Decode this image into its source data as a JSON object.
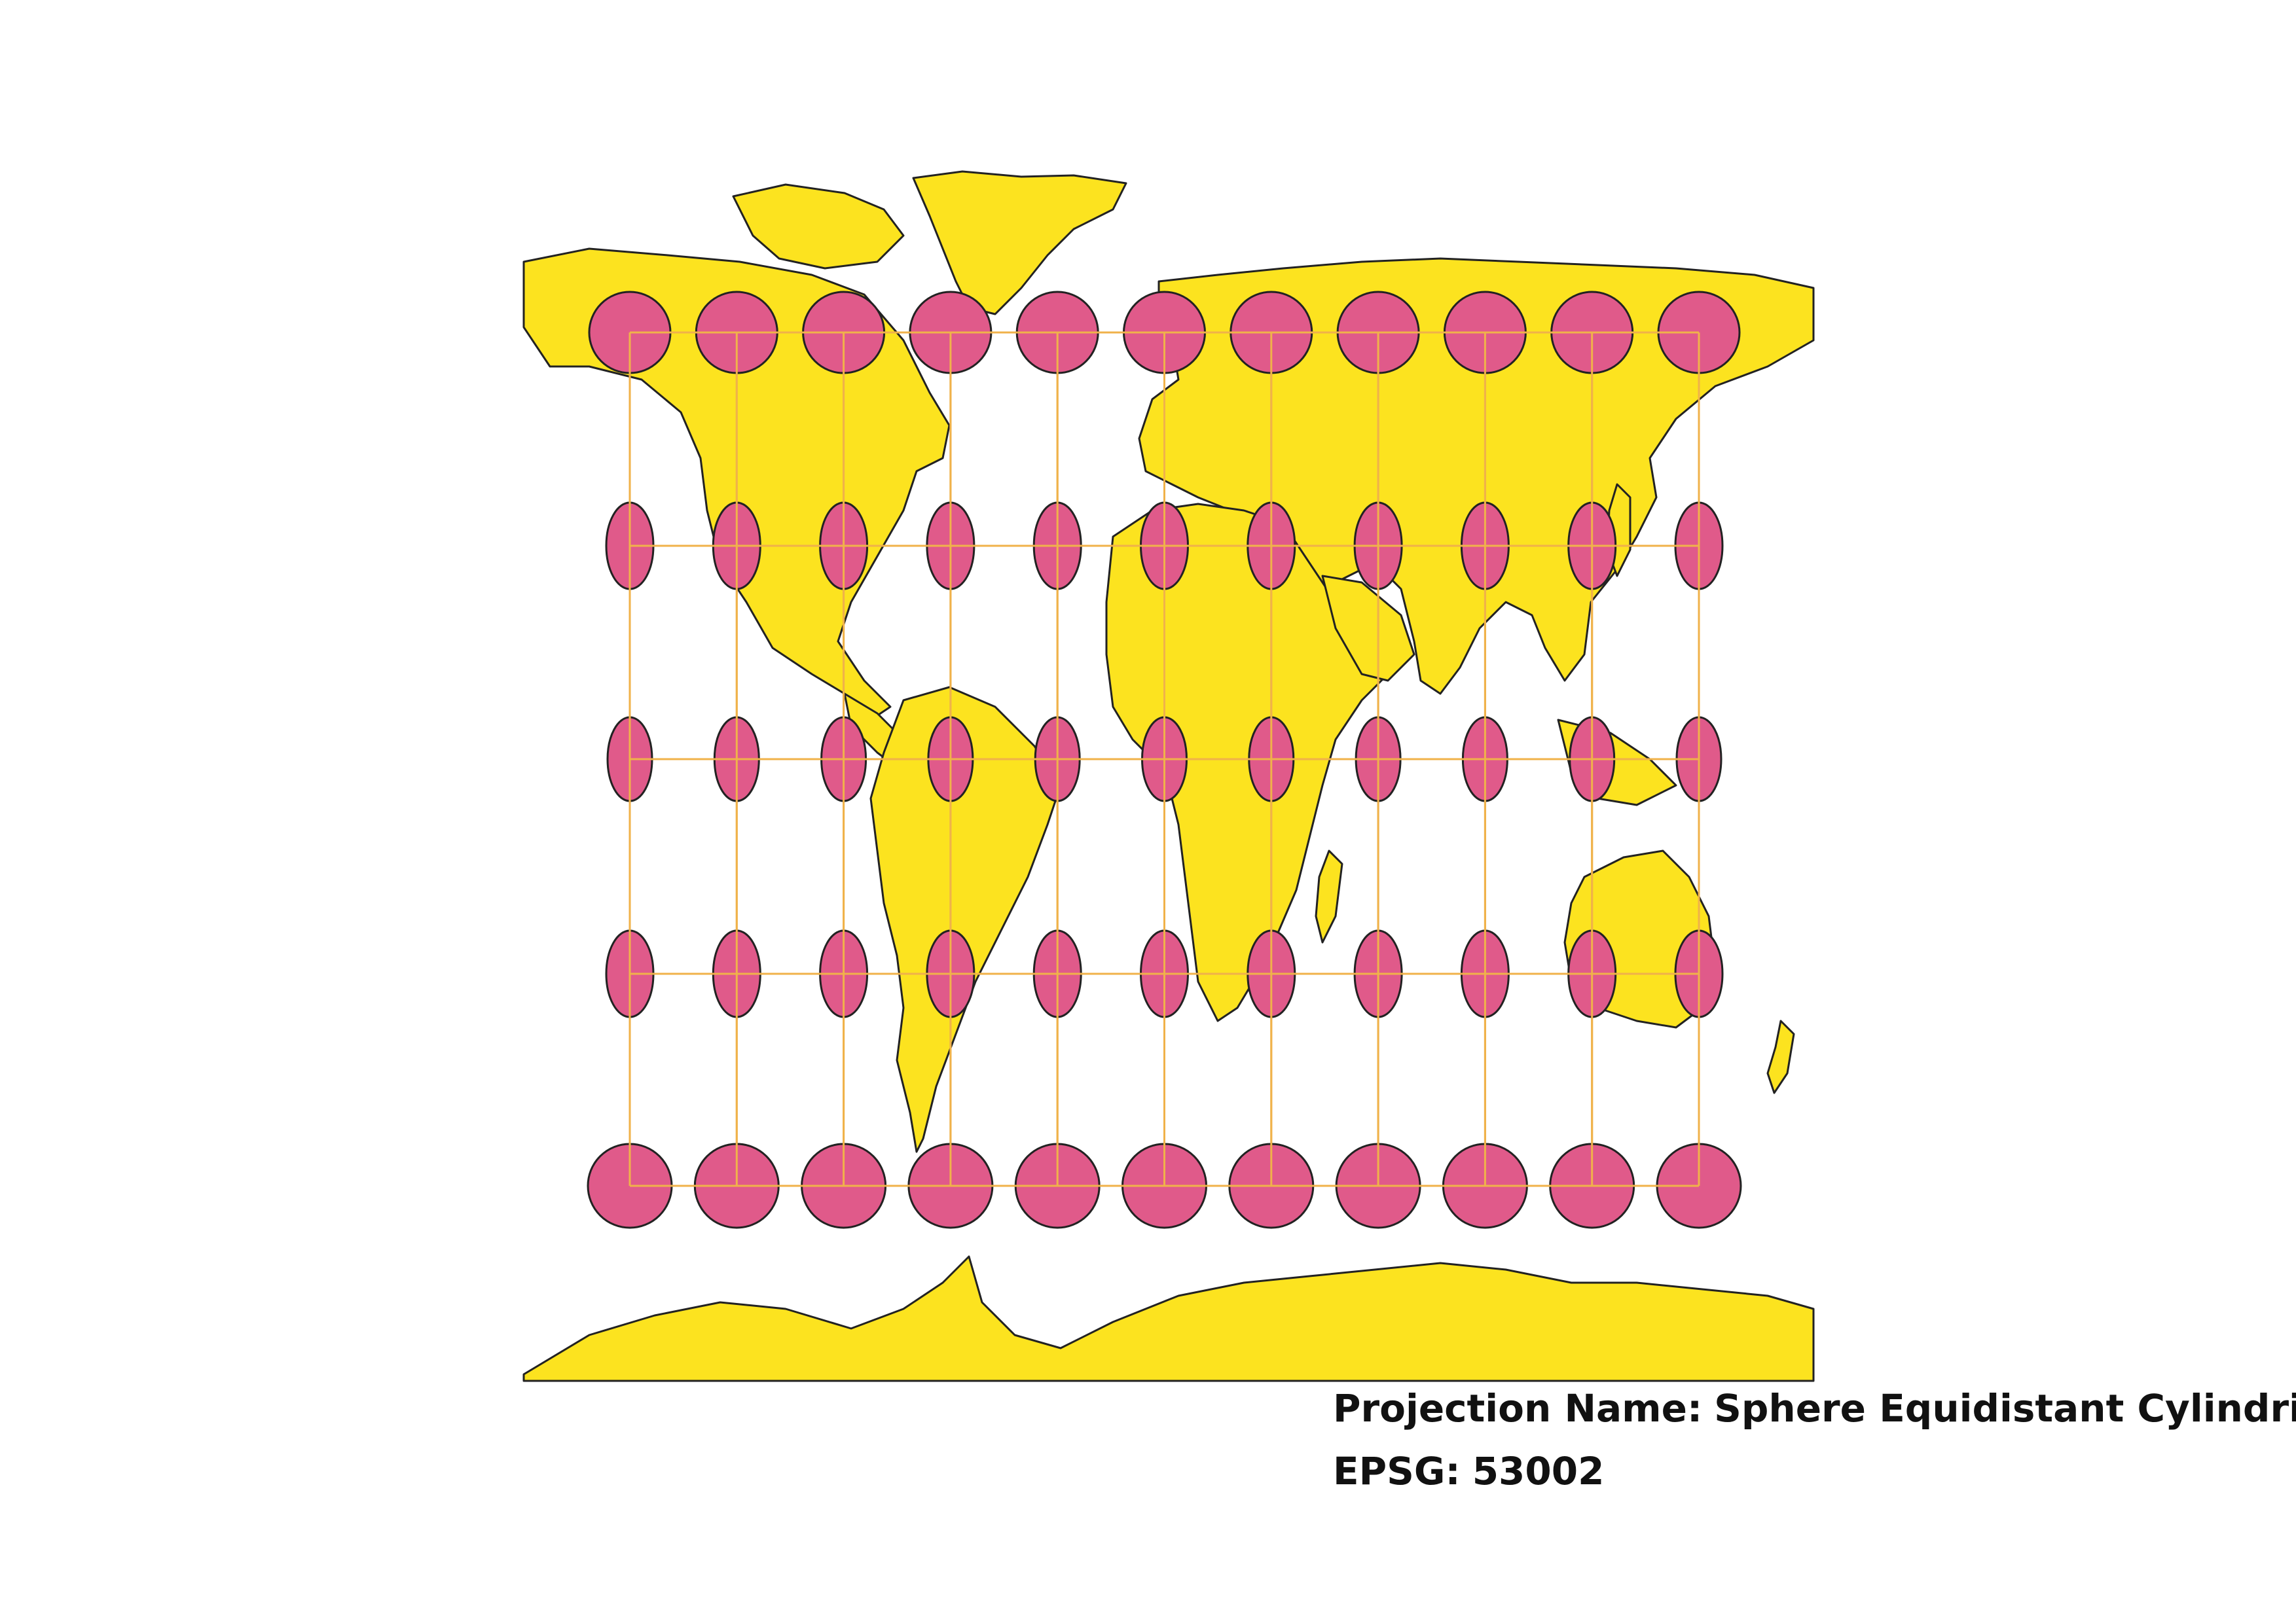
{
  "labels": {
    "projection_key": "Projection Name:",
    "projection_value": "Sphere Equidistant Cylindrical",
    "epsg_key": "EPSG:",
    "epsg_value": "53002"
  },
  "style": {
    "land": "#fce31f",
    "coast": "#222222",
    "ellipse_fill": "#e05a8a",
    "ellipse_stroke": "#222222",
    "grid": "#f0b24a"
  },
  "indicatrix": {
    "longitudes": [
      -150,
      -120,
      -90,
      -60,
      -30,
      0,
      30,
      60,
      90,
      120,
      150
    ],
    "latitudes": [
      60,
      30,
      0,
      -30,
      -60
    ]
  }
}
